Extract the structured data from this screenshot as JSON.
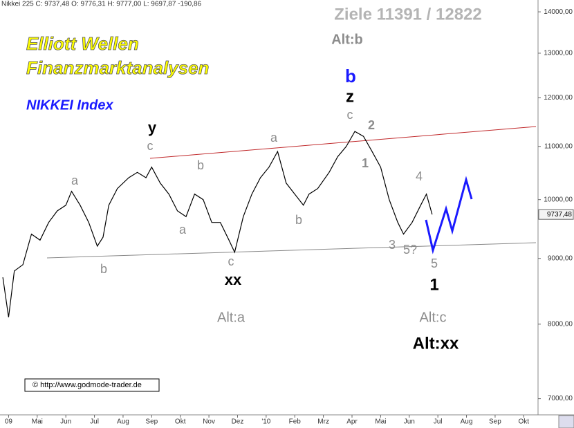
{
  "chart_data": {
    "type": "line",
    "header": "Nikkei 225 C: 9737,48 O: 9776,31 H: 9777,00 L: 9697,87 -190,86",
    "log_scale": true,
    "xlim": [
      3.7,
      22.5
    ],
    "ylim": [
      6800,
      14300
    ],
    "xticks": [
      {
        "value": 4,
        "label": "09"
      },
      {
        "value": 5,
        "label": "Mai"
      },
      {
        "value": 6,
        "label": "Jun"
      },
      {
        "value": 7,
        "label": "Jul"
      },
      {
        "value": 8,
        "label": "Aug"
      },
      {
        "value": 9,
        "label": "Sep"
      },
      {
        "value": 10,
        "label": "Okt"
      },
      {
        "value": 11,
        "label": "Nov"
      },
      {
        "value": 12,
        "label": "Dez"
      },
      {
        "value": 13,
        "label": "'10"
      },
      {
        "value": 14,
        "label": "Feb"
      },
      {
        "value": 15,
        "label": "Mrz"
      },
      {
        "value": 16,
        "label": "Apr"
      },
      {
        "value": 17,
        "label": "Mai"
      },
      {
        "value": 18,
        "label": "Jun"
      },
      {
        "value": 19,
        "label": "Jul"
      },
      {
        "value": 20,
        "label": "Aug"
      },
      {
        "value": 21,
        "label": "Sep"
      },
      {
        "value": 22,
        "label": "Okt"
      }
    ],
    "yticks": [
      {
        "value": 7000,
        "label": "7000,00"
      },
      {
        "value": 8000,
        "label": "8000,00"
      },
      {
        "value": 9000,
        "label": "9000,00"
      },
      {
        "value": 10000,
        "label": "10000,00"
      },
      {
        "value": 11000,
        "label": "11000,00"
      },
      {
        "value": 12000,
        "label": "12000,00"
      },
      {
        "value": 13000,
        "label": "13000,00"
      },
      {
        "value": 14000,
        "label": "14000,00"
      }
    ],
    "series": [
      {
        "color": "#000000",
        "x": [
          3.8,
          4.0,
          4.2,
          4.5,
          4.8,
          5.1,
          5.4,
          5.7,
          6.0,
          6.2,
          6.5,
          6.8,
          7.1,
          7.3,
          7.5,
          7.8,
          8.2,
          8.5,
          8.8,
          9.0,
          9.3,
          9.6,
          9.9,
          10.2,
          10.5,
          10.8,
          11.1,
          11.4,
          11.7,
          11.9,
          12.2,
          12.5,
          12.8,
          13.1,
          13.4,
          13.7,
          14.0,
          14.3,
          14.5,
          14.8,
          15.2,
          15.5,
          15.8,
          16.1,
          16.4,
          16.7,
          17.0,
          17.3,
          17.6,
          17.8,
          18.1,
          18.4,
          18.6,
          18.8
        ],
        "values": [
          8700,
          8100,
          8800,
          8900,
          9400,
          9300,
          9600,
          9800,
          9900,
          10150,
          9900,
          9600,
          9200,
          9350,
          9900,
          10200,
          10400,
          10500,
          10400,
          10600,
          10300,
          10100,
          9800,
          9700,
          10100,
          10000,
          9600,
          9600,
          9300,
          9100,
          9700,
          10100,
          10400,
          10600,
          10900,
          10300,
          10100,
          9900,
          10100,
          10200,
          10500,
          10800,
          11000,
          11300,
          11200,
          10900,
          10600,
          10000,
          9600,
          9400,
          9600,
          9900,
          10100,
          9737.48
        ]
      }
    ],
    "price_tag": {
      "value": 9737.48,
      "label": "9737,48"
    },
    "annotations": [
      "Ziele 11391 / 12822",
      "Alt:b",
      "Elliott Wellen",
      "Finanzmarktanalysen",
      "NIKKEI Index",
      "b",
      "z",
      "c",
      "2",
      "1",
      "y",
      "c",
      "a",
      "a",
      "b",
      "a",
      "b",
      "c",
      "xx",
      "b",
      "4",
      "3",
      "5?",
      "5",
      "1",
      "Alt:a",
      "Alt:c",
      "Alt:xx",
      "© http://www.godmode-trader.de"
    ]
  }
}
